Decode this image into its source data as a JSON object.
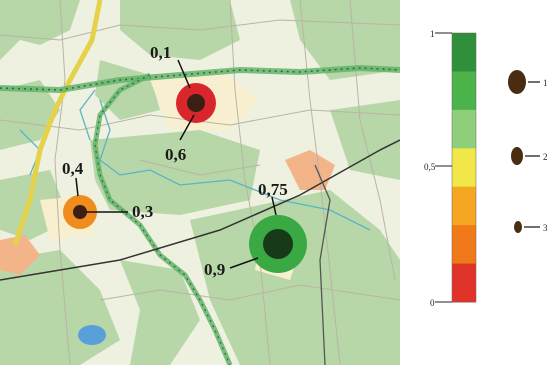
{
  "map": {
    "markers": [
      {
        "name": "marker-red",
        "color": "#d8262c",
        "labels": [
          "0,1",
          "0,6"
        ]
      },
      {
        "name": "marker-orange",
        "color": "#f08c1e",
        "labels": [
          "0,4",
          "0,3"
        ]
      },
      {
        "name": "marker-green",
        "color": "#2e9e3c",
        "labels": [
          "0,75",
          "0,9"
        ]
      }
    ]
  },
  "legend": {
    "scale": {
      "top": "1",
      "mid": "0,5",
      "bottom": "0",
      "colors": [
        "#2f8f3a",
        "#4cb24a",
        "#8fcf7c",
        "#f1e64a",
        "#f5a623",
        "#f07a1a",
        "#e0332a"
      ]
    },
    "sizes": [
      {
        "label": "1"
      },
      {
        "label": "2"
      },
      {
        "label": "3"
      }
    ]
  }
}
